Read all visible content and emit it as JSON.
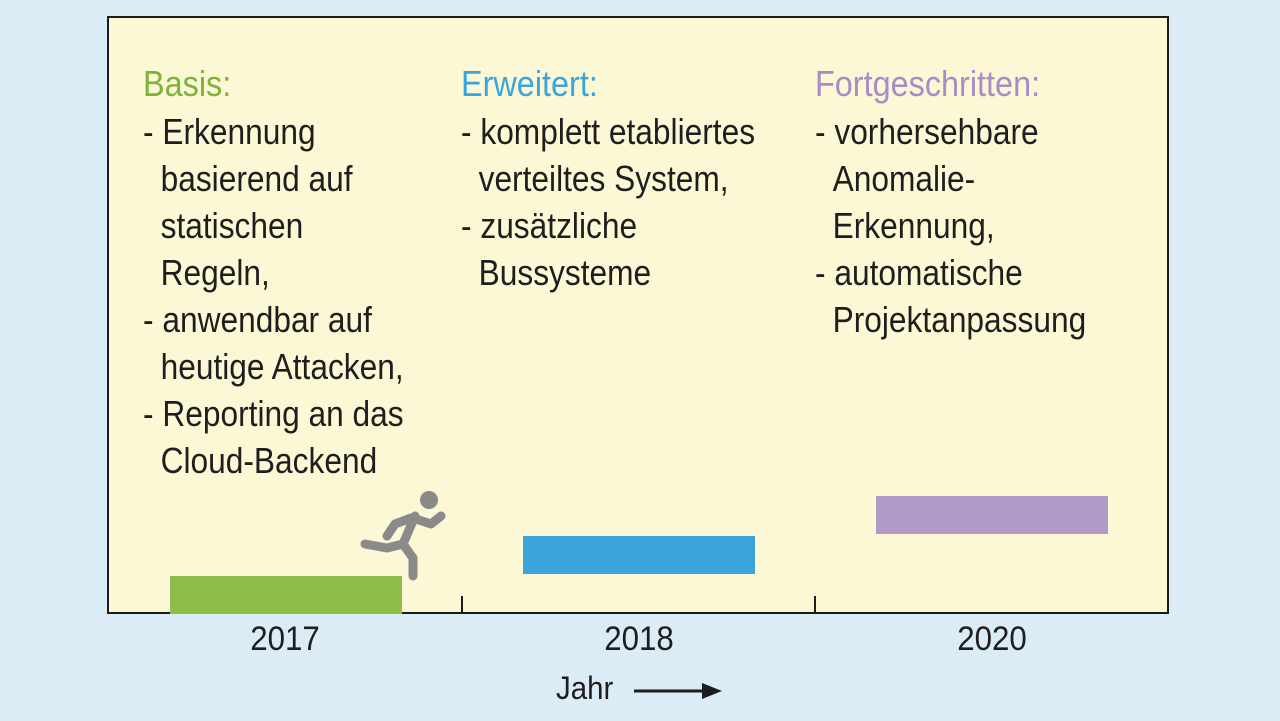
{
  "stages": [
    {
      "title": "Basis:",
      "color": "#7fb23a",
      "items": [
        "- Erkennung\nbasierend auf\nstatischen Regeln,",
        "- anwendbar auf\nheutige Attacken,",
        "- Reporting an das\nCloud-Backend"
      ]
    },
    {
      "title": "Erweitert:",
      "color": "#3aa5da",
      "items": [
        "- komplett etabliertes\nverteiltes System,",
        "- zusätzliche\nBussysteme"
      ]
    },
    {
      "title": "Fortgeschritten:",
      "color": "#a98bc6",
      "items": [
        "- vorhersehbare\nAnomalie-Erkennung,",
        "- automatische\nProjektanpassung"
      ]
    }
  ],
  "bars": {
    "bar_2017_color": "#8ebc4a",
    "bar_2018_color": "#3aa5da",
    "bar_2020_color": "#b39bc8"
  },
  "axis": {
    "years": [
      "2017",
      "2018",
      "2020"
    ],
    "label": "Jahr"
  },
  "icons": {
    "runner": "running-person-icon",
    "arrow": "arrow-right-icon"
  }
}
